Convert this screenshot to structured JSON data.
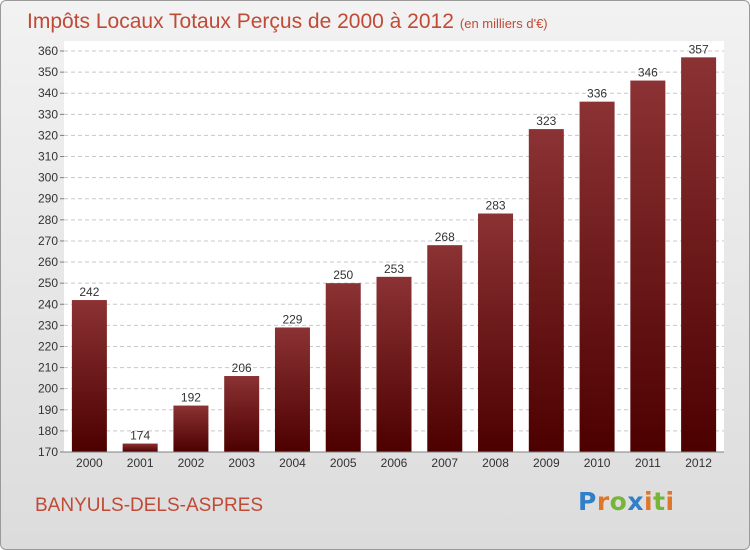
{
  "title": {
    "main": "Impôts Locaux Totaux Perçus de 2000 à 2012",
    "unit": "(en milliers d'€)"
  },
  "commune": "BANYULS-DELS-ASPRES",
  "logo": {
    "letters": [
      "P",
      "r",
      "o",
      "x",
      "i",
      "t",
      "i"
    ]
  },
  "colors": {
    "bar_top": "#8b3234",
    "bar_bottom": "#4d0000",
    "title": "#c04a36"
  },
  "chart_data": {
    "type": "bar",
    "title": "Impôts Locaux Totaux Perçus de 2000 à 2012",
    "xlabel": "",
    "ylabel": "(en milliers d'€)",
    "categories": [
      "2000",
      "2001",
      "2002",
      "2003",
      "2004",
      "2005",
      "2006",
      "2007",
      "2008",
      "2009",
      "2010",
      "2011",
      "2012"
    ],
    "values": [
      242,
      174,
      192,
      206,
      229,
      250,
      253,
      268,
      283,
      323,
      336,
      346,
      357
    ],
    "labels": [
      "242",
      "174",
      "192",
      "206",
      "229",
      "250",
      "253",
      "268",
      "283",
      "323",
      "336",
      "346",
      "357"
    ],
    "ylim": [
      170,
      360
    ],
    "yticks": [
      170,
      180,
      190,
      200,
      210,
      220,
      230,
      240,
      250,
      260,
      270,
      280,
      290,
      300,
      310,
      320,
      330,
      340,
      350,
      360
    ],
    "grid": true
  }
}
